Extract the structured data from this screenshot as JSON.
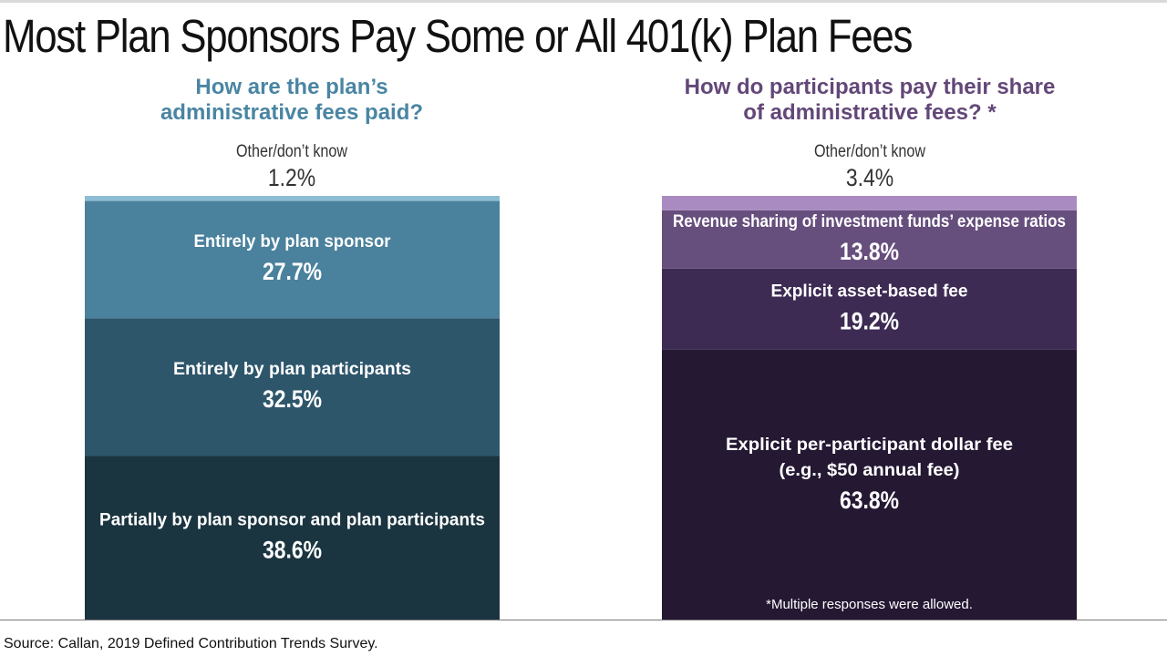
{
  "title": "Most Plan Sponsors Pay Some or All 401(k) Plan Fees",
  "source": "Source: Callan, 2019 Defined Contribution Trends Survey.",
  "chart_data": [
    {
      "type": "bar",
      "stacked": true,
      "title_lines": [
        "How are the plan’s",
        "administrative fees paid?"
      ],
      "title_color": "#4a85a3",
      "outside_segment": {
        "label": "Other/don’t know",
        "value_text": "1.2%"
      },
      "segments": [
        {
          "label": [
            "Partially by plan sponsor and plan participants"
          ],
          "value": 38.6,
          "value_text": "38.6%",
          "color": "#1b3540"
        },
        {
          "label": [
            "Entirely by plan participants"
          ],
          "value": 32.5,
          "value_text": "32.5%",
          "color": "#2e566b"
        },
        {
          "label": [
            "Entirely by plan sponsor"
          ],
          "value": 27.7,
          "value_text": "27.7%",
          "color": "#4a819d"
        },
        {
          "label": [
            "Other/don’t know"
          ],
          "value": 1.2,
          "value_text": "1.2%",
          "color": "#8dbdd4",
          "label_outside": true
        }
      ]
    },
    {
      "type": "bar",
      "stacked": true,
      "title_lines": [
        "How do participants pay their share",
        "of administrative fees? *"
      ],
      "title_color": "#634778",
      "outside_segment": {
        "label": "Other/don’t know",
        "value_text": "3.4%"
      },
      "segments": [
        {
          "label": [
            "Explicit per-participant dollar fee",
            "(e.g., $50 annual fee)"
          ],
          "value": 63.8,
          "value_text": "63.8%",
          "color": "#241833"
        },
        {
          "label": [
            "Explicit asset-based fee"
          ],
          "value": 19.2,
          "value_text": "19.2%",
          "color": "#3d2b54"
        },
        {
          "label": [
            "Revenue sharing of investment funds’ expense ratios"
          ],
          "value": 13.8,
          "value_text": "13.8%",
          "color": "#664e7d"
        },
        {
          "label": [
            "Other/don’t know"
          ],
          "value": 3.4,
          "value_text": "3.4%",
          "color": "#a98bc2",
          "label_outside": true
        }
      ],
      "footnote": "*Multiple responses were allowed."
    }
  ]
}
